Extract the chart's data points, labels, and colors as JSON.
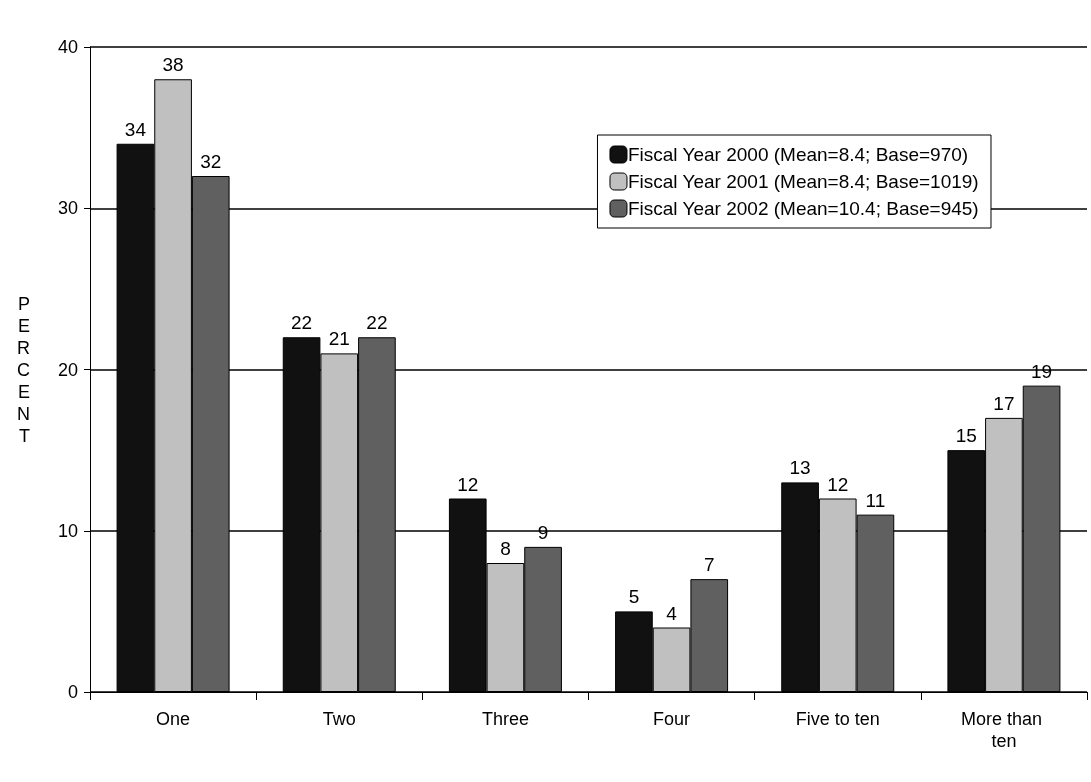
{
  "chart_data": {
    "type": "bar",
    "ylabel": "PERCENT",
    "categories": [
      "One",
      "Two",
      "Three",
      "Four",
      "Five to ten",
      "More than ten"
    ],
    "series": [
      {
        "name": "Fiscal Year 2000 (Mean=8.4; Base=970)",
        "color": "#111111",
        "values": [
          34,
          22,
          12,
          5,
          13,
          15
        ]
      },
      {
        "name": "Fiscal Year 2001 (Mean=8.4; Base=1019)",
        "color": "#c0c0c0",
        "values": [
          38,
          21,
          8,
          4,
          12,
          17
        ]
      },
      {
        "name": "Fiscal Year 2002 (Mean=10.4; Base=945)",
        "color": "#606060",
        "values": [
          32,
          22,
          9,
          7,
          11,
          19
        ]
      }
    ],
    "ylim": [
      0,
      40
    ],
    "yticks": [
      0,
      10,
      20,
      30,
      40
    ],
    "grid": "y",
    "legend": "top right",
    "data_labels": true
  }
}
